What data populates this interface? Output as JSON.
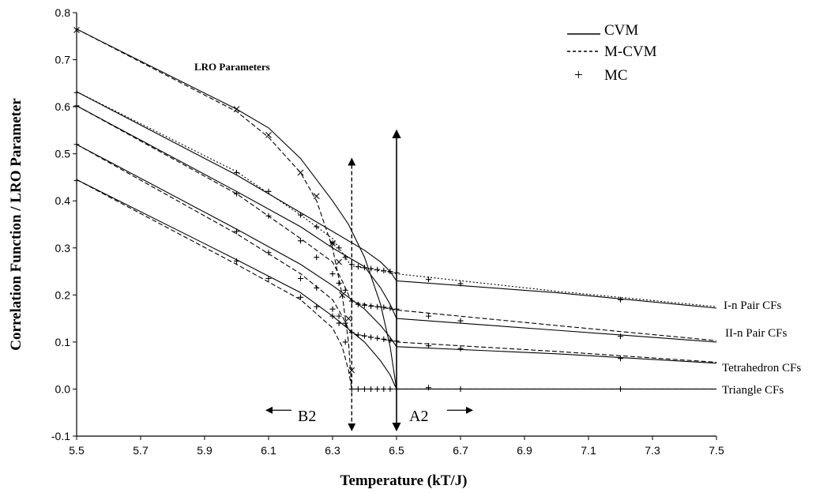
{
  "chart_data": {
    "type": "line",
    "title": "",
    "xlabel": "Temperature (kT/J)",
    "ylabel": "Correlation Function / LRO Parameter",
    "xlim": [
      5.5,
      7.5
    ],
    "ylim": [
      -0.1,
      0.8
    ],
    "xticks": [
      "5.5",
      "5.7",
      "5.9",
      "6.1",
      "6.3",
      "6.5",
      "6.7",
      "6.9",
      "7.1",
      "7.3",
      "7.5"
    ],
    "yticks": [
      "-0.1",
      "0.0",
      "0.1",
      "0.2",
      "0.3",
      "0.4",
      "0.5",
      "0.6",
      "0.7",
      "0.8"
    ],
    "grid": false,
    "legend": {
      "position": "top-right",
      "entries": [
        {
          "symbol": "___",
          "label": "CVM",
          "style": "solid"
        },
        {
          "symbol": "-----",
          "label": "M-CVM",
          "style": "dashed"
        },
        {
          "symbol": "+",
          "label": "MC",
          "style": "marker"
        }
      ]
    },
    "annotations": {
      "lro": "LRO Parameters",
      "b2": "B2",
      "a2": "A2",
      "curve_labels": [
        "I-n Pair CFs",
        "II-n Pair CFs",
        "Tetrahedron CFs",
        "Triangle CFs"
      ]
    },
    "transitions": {
      "mcvm": 6.36,
      "cvm": 6.5
    },
    "series": [
      {
        "group": "lro",
        "method": "CVM",
        "style": "solid",
        "x": [
          5.5,
          6.0,
          6.1,
          6.2,
          6.3,
          6.35,
          6.4,
          6.45,
          6.48,
          6.5
        ],
        "y": [
          0.765,
          0.595,
          0.555,
          0.49,
          0.4,
          0.35,
          0.28,
          0.18,
          0.09,
          0.0
        ]
      },
      {
        "group": "lro",
        "method": "M-CVM",
        "style": "dashed",
        "x": [
          5.5,
          6.0,
          6.1,
          6.2,
          6.25,
          6.3,
          6.33,
          6.35,
          6.36
        ],
        "y": [
          0.765,
          0.59,
          0.535,
          0.46,
          0.4,
          0.3,
          0.2,
          0.1,
          0.0
        ]
      },
      {
        "group": "lro",
        "method": "MC",
        "style": "x",
        "x": [
          5.5,
          6.0,
          6.1,
          6.2,
          6.25,
          6.3,
          6.32,
          6.33,
          6.35,
          6.36
        ],
        "y": [
          0.763,
          0.595,
          0.54,
          0.46,
          0.41,
          0.31,
          0.27,
          0.2,
          0.15,
          0.04
        ]
      },
      {
        "group": "I-n Pair CFs",
        "method": "CVM",
        "style": "solid",
        "x": [
          5.5,
          6.0,
          6.2,
          6.3,
          6.4,
          6.45,
          6.48,
          6.5,
          7.0,
          7.5
        ],
        "y": [
          0.632,
          0.455,
          0.375,
          0.335,
          0.295,
          0.27,
          0.25,
          0.23,
          0.205,
          0.172
        ]
      },
      {
        "group": "I-n Pair CFs",
        "method": "M-CVM",
        "style": "dotted",
        "x": [
          5.5,
          6.0,
          6.2,
          6.3,
          6.33,
          6.35,
          6.36,
          6.5,
          7.0,
          7.5
        ],
        "y": [
          0.632,
          0.462,
          0.37,
          0.32,
          0.29,
          0.27,
          0.262,
          0.245,
          0.208,
          0.175
        ]
      },
      {
        "group": "I-n Pair CFs",
        "method": "MC",
        "style": "plus",
        "x": [
          5.5,
          6.0,
          6.1,
          6.2,
          6.25,
          6.3,
          6.32,
          6.34,
          6.36,
          6.38,
          6.4,
          6.42,
          6.44,
          6.46,
          6.48,
          6.5,
          6.6,
          6.7,
          7.2
        ],
        "y": [
          0.63,
          0.46,
          0.42,
          0.37,
          0.345,
          0.31,
          0.3,
          0.28,
          0.265,
          0.26,
          0.258,
          0.256,
          0.254,
          0.252,
          0.25,
          0.247,
          0.233,
          0.224,
          0.19
        ]
      },
      {
        "group": "II-n Pair CFs",
        "method": "CVM",
        "style": "solid",
        "x": [
          5.5,
          6.0,
          6.2,
          6.3,
          6.4,
          6.45,
          6.48,
          6.5,
          7.0,
          7.5
        ],
        "y": [
          0.602,
          0.42,
          0.345,
          0.3,
          0.26,
          0.215,
          0.18,
          0.15,
          0.125,
          0.1
        ]
      },
      {
        "group": "II-n Pair CFs",
        "method": "M-CVM",
        "style": "dashed",
        "x": [
          5.5,
          6.0,
          6.2,
          6.3,
          6.33,
          6.35,
          6.36,
          6.5,
          7.0,
          7.5
        ],
        "y": [
          0.602,
          0.415,
          0.32,
          0.27,
          0.23,
          0.2,
          0.185,
          0.168,
          0.135,
          0.103
        ]
      },
      {
        "group": "II-n Pair CFs",
        "method": "MC",
        "style": "plus",
        "x": [
          5.5,
          6.0,
          6.1,
          6.2,
          6.25,
          6.3,
          6.32,
          6.34,
          6.36,
          6.38,
          6.4,
          6.42,
          6.44,
          6.46,
          6.48,
          6.5,
          6.6,
          6.7,
          7.2
        ],
        "y": [
          0.602,
          0.415,
          0.368,
          0.315,
          0.28,
          0.245,
          0.225,
          0.21,
          0.187,
          0.18,
          0.178,
          0.176,
          0.175,
          0.174,
          0.172,
          0.17,
          0.155,
          0.145,
          0.112
        ]
      },
      {
        "group": "Tetrahedron CFs",
        "method": "CVM",
        "style": "solid",
        "x": [
          5.5,
          6.0,
          6.2,
          6.3,
          6.4,
          6.45,
          6.48,
          6.5,
          7.0,
          7.5
        ],
        "y": [
          0.52,
          0.34,
          0.265,
          0.22,
          0.17,
          0.135,
          0.11,
          0.09,
          0.075,
          0.055
        ]
      },
      {
        "group": "Tetrahedron CFs",
        "method": "M-CVM",
        "style": "dashed",
        "x": [
          5.5,
          6.0,
          6.2,
          6.3,
          6.33,
          6.35,
          6.36,
          6.5,
          7.0,
          7.5
        ],
        "y": [
          0.52,
          0.33,
          0.245,
          0.19,
          0.155,
          0.128,
          0.118,
          0.1,
          0.08,
          0.057
        ]
      },
      {
        "group": "Tetrahedron CFs",
        "method": "MC",
        "style": "plus",
        "x": [
          5.5,
          6.0,
          6.1,
          6.2,
          6.25,
          6.3,
          6.32,
          6.34,
          6.36,
          6.38,
          6.4,
          6.42,
          6.44,
          6.46,
          6.48,
          6.5,
          6.6,
          6.7,
          7.2
        ],
        "y": [
          0.52,
          0.335,
          0.29,
          0.235,
          0.215,
          0.17,
          0.155,
          0.14,
          0.12,
          0.115,
          0.113,
          0.11,
          0.108,
          0.106,
          0.104,
          0.102,
          0.092,
          0.086,
          0.065
        ]
      },
      {
        "group": "Triangle CFs",
        "method": "CVM",
        "style": "solid",
        "x": [
          5.5,
          6.0,
          6.2,
          6.3,
          6.4,
          6.45,
          6.48,
          6.5,
          7.0,
          7.5
        ],
        "y": [
          0.445,
          0.275,
          0.205,
          0.155,
          0.1,
          0.06,
          0.03,
          0.0,
          0.0,
          0.0
        ]
      },
      {
        "group": "Triangle CFs",
        "method": "M-CVM",
        "style": "dashed",
        "x": [
          5.5,
          6.0,
          6.2,
          6.3,
          6.33,
          6.35,
          6.36,
          6.5,
          7.0,
          7.5
        ],
        "y": [
          0.445,
          0.265,
          0.19,
          0.13,
          0.09,
          0.04,
          0.0,
          0.0,
          0.0,
          0.0
        ]
      },
      {
        "group": "Triangle CFs",
        "method": "MC",
        "style": "plus",
        "x": [
          5.5,
          6.0,
          6.1,
          6.2,
          6.25,
          6.3,
          6.32,
          6.34,
          6.36,
          6.38,
          6.4,
          6.42,
          6.44,
          6.46,
          6.48,
          6.5,
          6.6,
          6.7,
          7.2
        ],
        "y": [
          0.443,
          0.272,
          0.235,
          0.195,
          0.175,
          0.155,
          0.14,
          0.1,
          0.0,
          0.0,
          0.0,
          0.0,
          0.0,
          0.0,
          0.0,
          0.0,
          0.003,
          0.0,
          0.0
        ]
      }
    ]
  }
}
